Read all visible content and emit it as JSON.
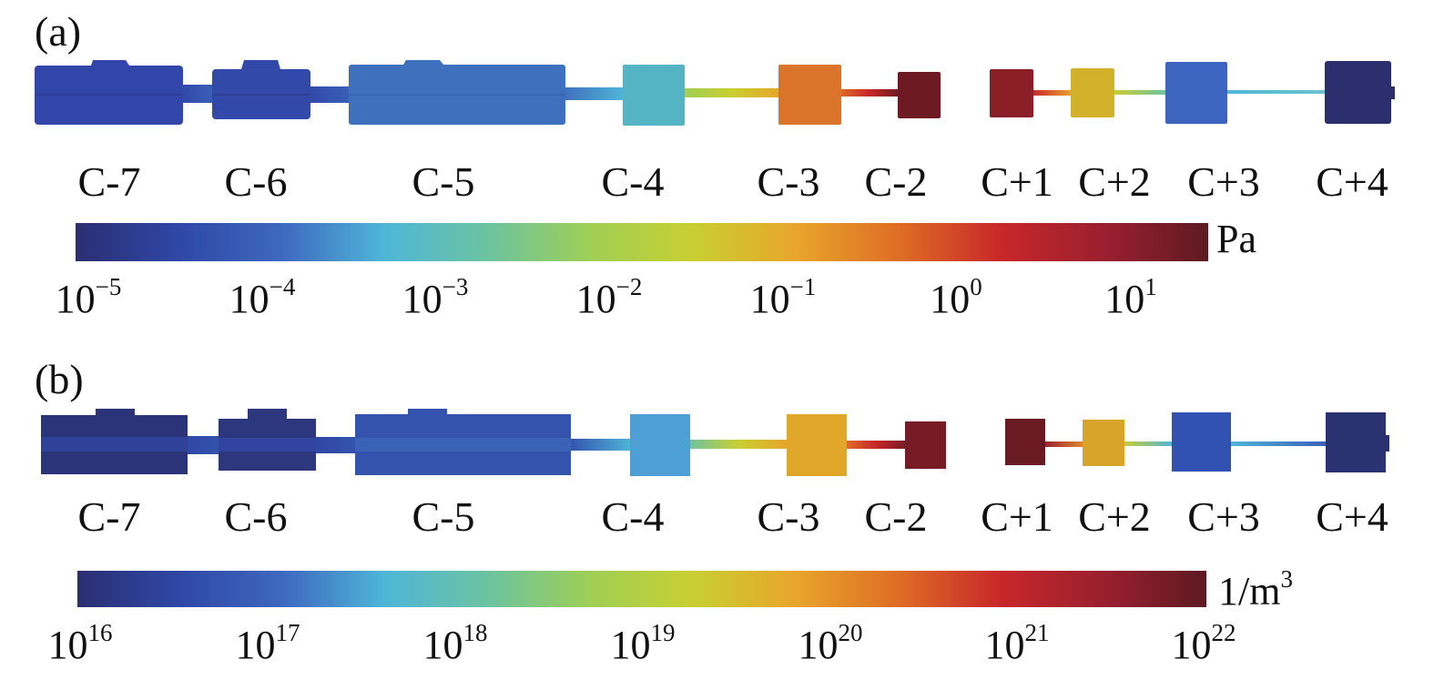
{
  "colors": {
    "cmap": [
      "#2b2e72",
      "#2f47a6",
      "#3e68c0",
      "#4fb6d8",
      "#6cc3a0",
      "#9fcf55",
      "#c9cf32",
      "#e8a52b",
      "#de6d25",
      "#c8272a",
      "#9a1f2f",
      "#5e1a22"
    ],
    "outline": "#9aa0c8"
  },
  "panel_a": {
    "label": "(a)",
    "unit": "Pa",
    "colorbar_ticks": [
      {
        "base": "10",
        "exp": "−5"
      },
      {
        "base": "10",
        "exp": "−4"
      },
      {
        "base": "10",
        "exp": "−3"
      },
      {
        "base": "10",
        "exp": "−2"
      },
      {
        "base": "10",
        "exp": "−1"
      },
      {
        "base": "10",
        "exp": "0"
      },
      {
        "base": "10",
        "exp": "1"
      }
    ],
    "chambers": [
      {
        "name": "C-7",
        "color": "#3146a8"
      },
      {
        "name": "C-6",
        "color": "#3249aa"
      },
      {
        "name": "C-5",
        "color": "#3f70bd"
      },
      {
        "name": "C-4",
        "color": "#55b4c4"
      },
      {
        "name": "C-3",
        "color": "#d9742a"
      },
      {
        "name": "C-2",
        "color": "#6e1a22"
      },
      {
        "name": "C+1",
        "color": "#8a1f28"
      },
      {
        "name": "C+2",
        "color": "#d2b22a"
      },
      {
        "name": "C+3",
        "color": "#3d64bf"
      },
      {
        "name": "C+4",
        "color": "#2b2f6e"
      }
    ]
  },
  "panel_b": {
    "label": "(b)",
    "unit_base": "1/m",
    "unit_exp": "3",
    "colorbar_ticks": [
      {
        "base": "10",
        "exp": "16"
      },
      {
        "base": "10",
        "exp": "17"
      },
      {
        "base": "10",
        "exp": "18"
      },
      {
        "base": "10",
        "exp": "19"
      },
      {
        "base": "10",
        "exp": "20"
      },
      {
        "base": "10",
        "exp": "21"
      },
      {
        "base": "10",
        "exp": "22"
      }
    ],
    "chambers": [
      {
        "name": "C-7",
        "color": "#2c3479"
      },
      {
        "name": "C-6",
        "color": "#2d377e"
      },
      {
        "name": "C-5",
        "color": "#3353ad"
      },
      {
        "name": "C-4",
        "color": "#4d9fd4"
      },
      {
        "name": "C-3",
        "color": "#e0a72a"
      },
      {
        "name": "C-2",
        "color": "#771c25"
      },
      {
        "name": "C+1",
        "color": "#6a1a22"
      },
      {
        "name": "C+2",
        "color": "#d9a42a"
      },
      {
        "name": "C+3",
        "color": "#3152b2"
      },
      {
        "name": "C+4",
        "color": "#2b3272"
      }
    ]
  }
}
